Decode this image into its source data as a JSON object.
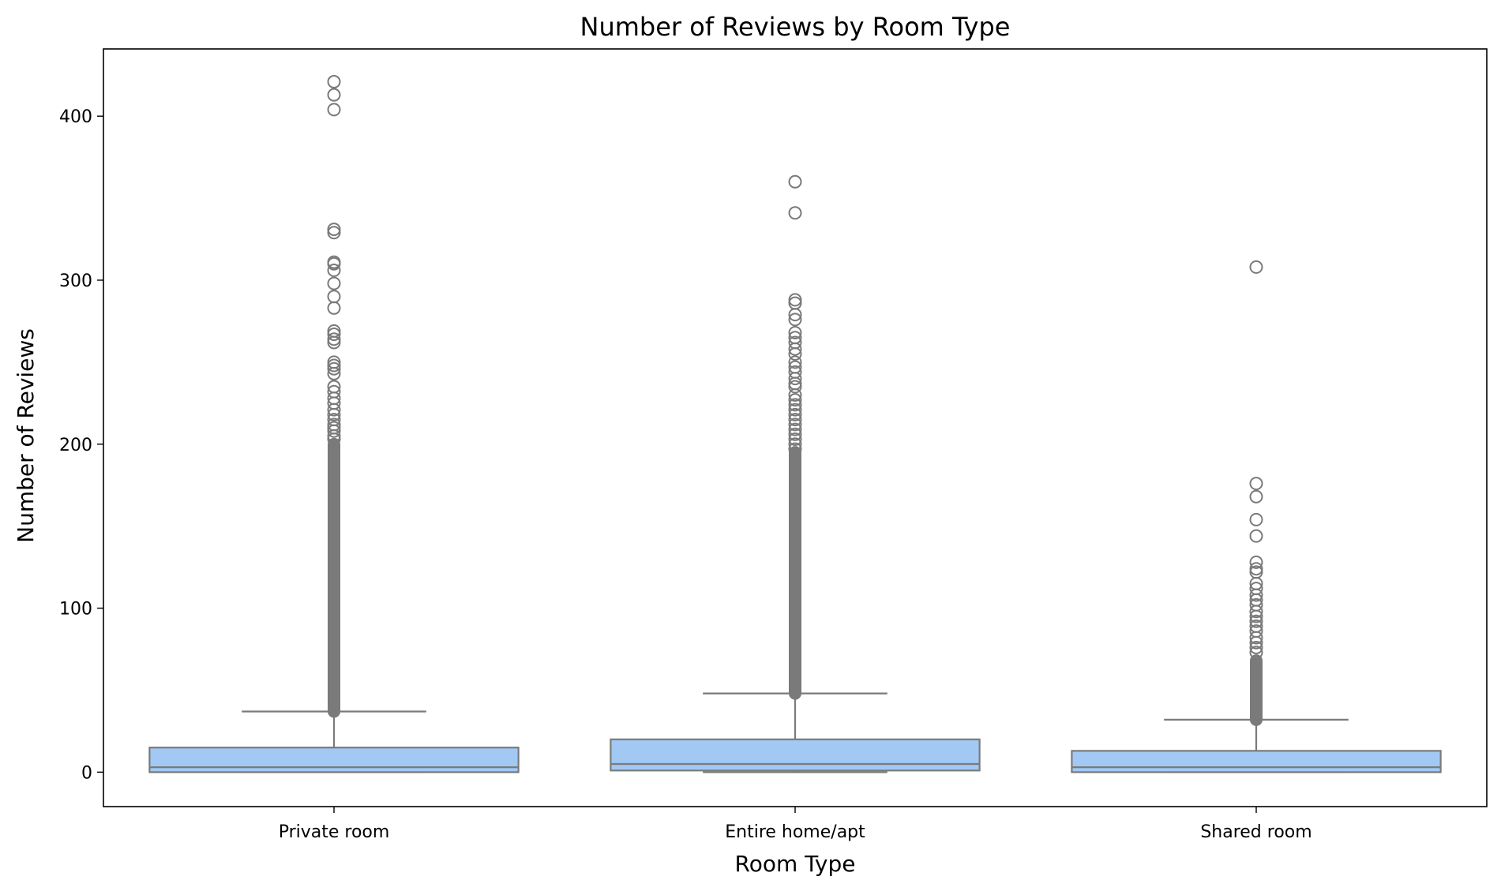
{
  "chart_data": {
    "type": "box",
    "title": "Number of Reviews by Room Type",
    "xlabel": "Room Type",
    "ylabel": "Number of Reviews",
    "ylim": [
      -21,
      441
    ],
    "yticks": [
      0,
      100,
      200,
      300,
      400
    ],
    "grid": false,
    "legend": "none",
    "colors": {
      "box_fill": "#a1c9f4",
      "line": "#7a7a7a",
      "axis": "#000000"
    },
    "categories": [
      "Private room",
      "Entire home/apt",
      "Shared room"
    ],
    "boxes": [
      {
        "category": "Private room",
        "whislo": 0,
        "q1": 0,
        "med": 3,
        "q3": 15,
        "whishi": 37,
        "outlier_dense_range": [
          37,
          200
        ],
        "outliers": [
          421,
          413,
          404,
          331,
          329,
          311,
          310,
          306,
          298,
          290,
          283,
          269,
          267,
          264,
          262,
          250,
          248,
          246,
          243,
          235,
          232,
          228,
          225,
          221,
          218,
          215,
          212,
          210,
          208,
          205,
          203
        ]
      },
      {
        "category": "Entire home/apt",
        "whislo": 0,
        "q1": 1,
        "med": 5,
        "q3": 20,
        "whishi": 48,
        "outlier_dense_range": [
          48,
          195
        ],
        "outliers": [
          360,
          341,
          288,
          286,
          279,
          276,
          268,
          265,
          262,
          258,
          255,
          250,
          247,
          244,
          240,
          237,
          235,
          230,
          227,
          224,
          221,
          218,
          215,
          212,
          209,
          206,
          203,
          200,
          197
        ]
      },
      {
        "category": "Shared room",
        "whislo": 0,
        "q1": 0,
        "med": 3,
        "q3": 13,
        "whishi": 32,
        "outlier_dense_range": [
          32,
          68
        ],
        "outliers": [
          308,
          176,
          168,
          154,
          144,
          128,
          124,
          122,
          115,
          112,
          108,
          105,
          102,
          98,
          95,
          92,
          89,
          86,
          82,
          79,
          76,
          73
        ]
      }
    ]
  }
}
